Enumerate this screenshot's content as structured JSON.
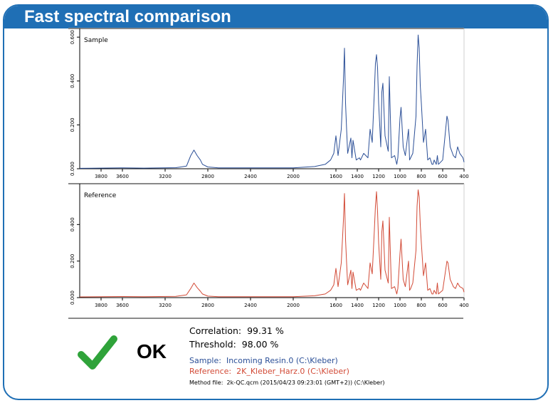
{
  "header": {
    "title": "Fast spectral comparison"
  },
  "colors": {
    "brand": "#1f6fb5",
    "sample_line": "#2b4f97",
    "reference_line": "#d24a36",
    "ok_check": "#2fa33a"
  },
  "result": {
    "status": "OK",
    "correlation_label": "Correlation:",
    "correlation_value": "99.31 %",
    "threshold_label": "Threshold:",
    "threshold_value": "98.00 %",
    "sample_label": "Sample:",
    "sample_value": "Incoming Resin.0 (C:\\Kleber)",
    "reference_label": "Reference:",
    "reference_value": "2K_Kleber_Harz.0 (C:\\Kleber)",
    "method_label": "Method file:",
    "method_value": "2k-QC.qcm (2015/04/23 09:23:01 (GMT+2)) (C:\\Kleber)",
    "icon": "checkmark-icon"
  },
  "chart_data": [
    {
      "type": "line",
      "name": "Sample",
      "xlim": [
        4000,
        400
      ],
      "ylim": [
        0,
        0.62
      ],
      "x_ticks": [
        "3800",
        "3600",
        "3200",
        "2800",
        "2400",
        "2000",
        "1600",
        "1400",
        "1200",
        "1000",
        "800",
        "600",
        "400"
      ],
      "y_ticks": [
        "0.000",
        "0.200",
        "0.400",
        "0.600"
      ],
      "x": [
        4000,
        3600,
        3400,
        3100,
        3000,
        2960,
        2930,
        2900,
        2870,
        2850,
        2800,
        2700,
        2000,
        1800,
        1700,
        1650,
        1620,
        1600,
        1580,
        1550,
        1530,
        1520,
        1510,
        1500,
        1490,
        1460,
        1450,
        1440,
        1410,
        1380,
        1370,
        1340,
        1300,
        1280,
        1260,
        1240,
        1230,
        1220,
        1210,
        1200,
        1180,
        1170,
        1160,
        1140,
        1110,
        1100,
        1080,
        1050,
        1030,
        1020,
        1000,
        990,
        970,
        950,
        920,
        910,
        900,
        880,
        850,
        840,
        830,
        820,
        810,
        800,
        780,
        760,
        740,
        720,
        700,
        690,
        680,
        660,
        650,
        640,
        620,
        600,
        560,
        550,
        530,
        500,
        480,
        460,
        440,
        410,
        400
      ],
      "y": [
        0.002,
        0.004,
        0.003,
        0.005,
        0.012,
        0.06,
        0.085,
        0.06,
        0.04,
        0.02,
        0.008,
        0.004,
        0.004,
        0.01,
        0.02,
        0.04,
        0.07,
        0.15,
        0.06,
        0.18,
        0.4,
        0.55,
        0.3,
        0.18,
        0.07,
        0.14,
        0.05,
        0.13,
        0.04,
        0.05,
        0.04,
        0.07,
        0.05,
        0.18,
        0.12,
        0.35,
        0.48,
        0.52,
        0.46,
        0.3,
        0.1,
        0.35,
        0.39,
        0.15,
        0.08,
        0.42,
        0.05,
        0.06,
        0.02,
        0.05,
        0.23,
        0.28,
        0.1,
        0.06,
        0.18,
        0.04,
        0.05,
        0.07,
        0.24,
        0.47,
        0.61,
        0.55,
        0.38,
        0.3,
        0.12,
        0.18,
        0.04,
        0.05,
        0.02,
        0.02,
        0.04,
        0.02,
        0.06,
        0.02,
        0.03,
        0.04,
        0.24,
        0.22,
        0.1,
        0.06,
        0.05,
        0.1,
        0.07,
        0.05,
        0.03
      ]
    },
    {
      "type": "line",
      "name": "Reference",
      "xlim": [
        4000,
        400
      ],
      "ylim": [
        0,
        0.6
      ],
      "x_ticks": [
        "3800",
        "3600",
        "3200",
        "2800",
        "2400",
        "2000",
        "1600",
        "1400",
        "1200",
        "1000",
        "800",
        "600",
        "400"
      ],
      "y_ticks": [
        "0.000",
        "0.200",
        "0.400"
      ],
      "x": [
        4000,
        3600,
        3400,
        3100,
        3000,
        2960,
        2930,
        2900,
        2870,
        2850,
        2800,
        2700,
        2000,
        1800,
        1700,
        1650,
        1620,
        1600,
        1580,
        1550,
        1530,
        1520,
        1510,
        1500,
        1490,
        1460,
        1450,
        1440,
        1410,
        1380,
        1370,
        1340,
        1300,
        1280,
        1260,
        1240,
        1230,
        1220,
        1210,
        1200,
        1180,
        1170,
        1160,
        1140,
        1110,
        1100,
        1080,
        1050,
        1030,
        1020,
        1000,
        990,
        970,
        950,
        920,
        910,
        900,
        880,
        850,
        840,
        830,
        820,
        810,
        800,
        780,
        760,
        740,
        720,
        700,
        690,
        680,
        660,
        650,
        640,
        620,
        600,
        560,
        550,
        530,
        500,
        480,
        460,
        440,
        410,
        400
      ],
      "y": [
        0.004,
        0.006,
        0.005,
        0.007,
        0.015,
        0.05,
        0.08,
        0.055,
        0.035,
        0.02,
        0.008,
        0.005,
        0.005,
        0.01,
        0.02,
        0.04,
        0.07,
        0.16,
        0.06,
        0.19,
        0.42,
        0.57,
        0.32,
        0.19,
        0.07,
        0.15,
        0.05,
        0.14,
        0.04,
        0.05,
        0.04,
        0.08,
        0.05,
        0.19,
        0.13,
        0.37,
        0.5,
        0.58,
        0.47,
        0.3,
        0.1,
        0.36,
        0.42,
        0.15,
        0.08,
        0.44,
        0.05,
        0.06,
        0.02,
        0.05,
        0.24,
        0.32,
        0.1,
        0.06,
        0.2,
        0.04,
        0.05,
        0.08,
        0.26,
        0.5,
        0.59,
        0.55,
        0.4,
        0.3,
        0.12,
        0.19,
        0.04,
        0.05,
        0.02,
        0.02,
        0.04,
        0.02,
        0.08,
        0.02,
        0.03,
        0.04,
        0.2,
        0.19,
        0.1,
        0.06,
        0.05,
        0.08,
        0.06,
        0.05,
        0.03
      ]
    }
  ]
}
